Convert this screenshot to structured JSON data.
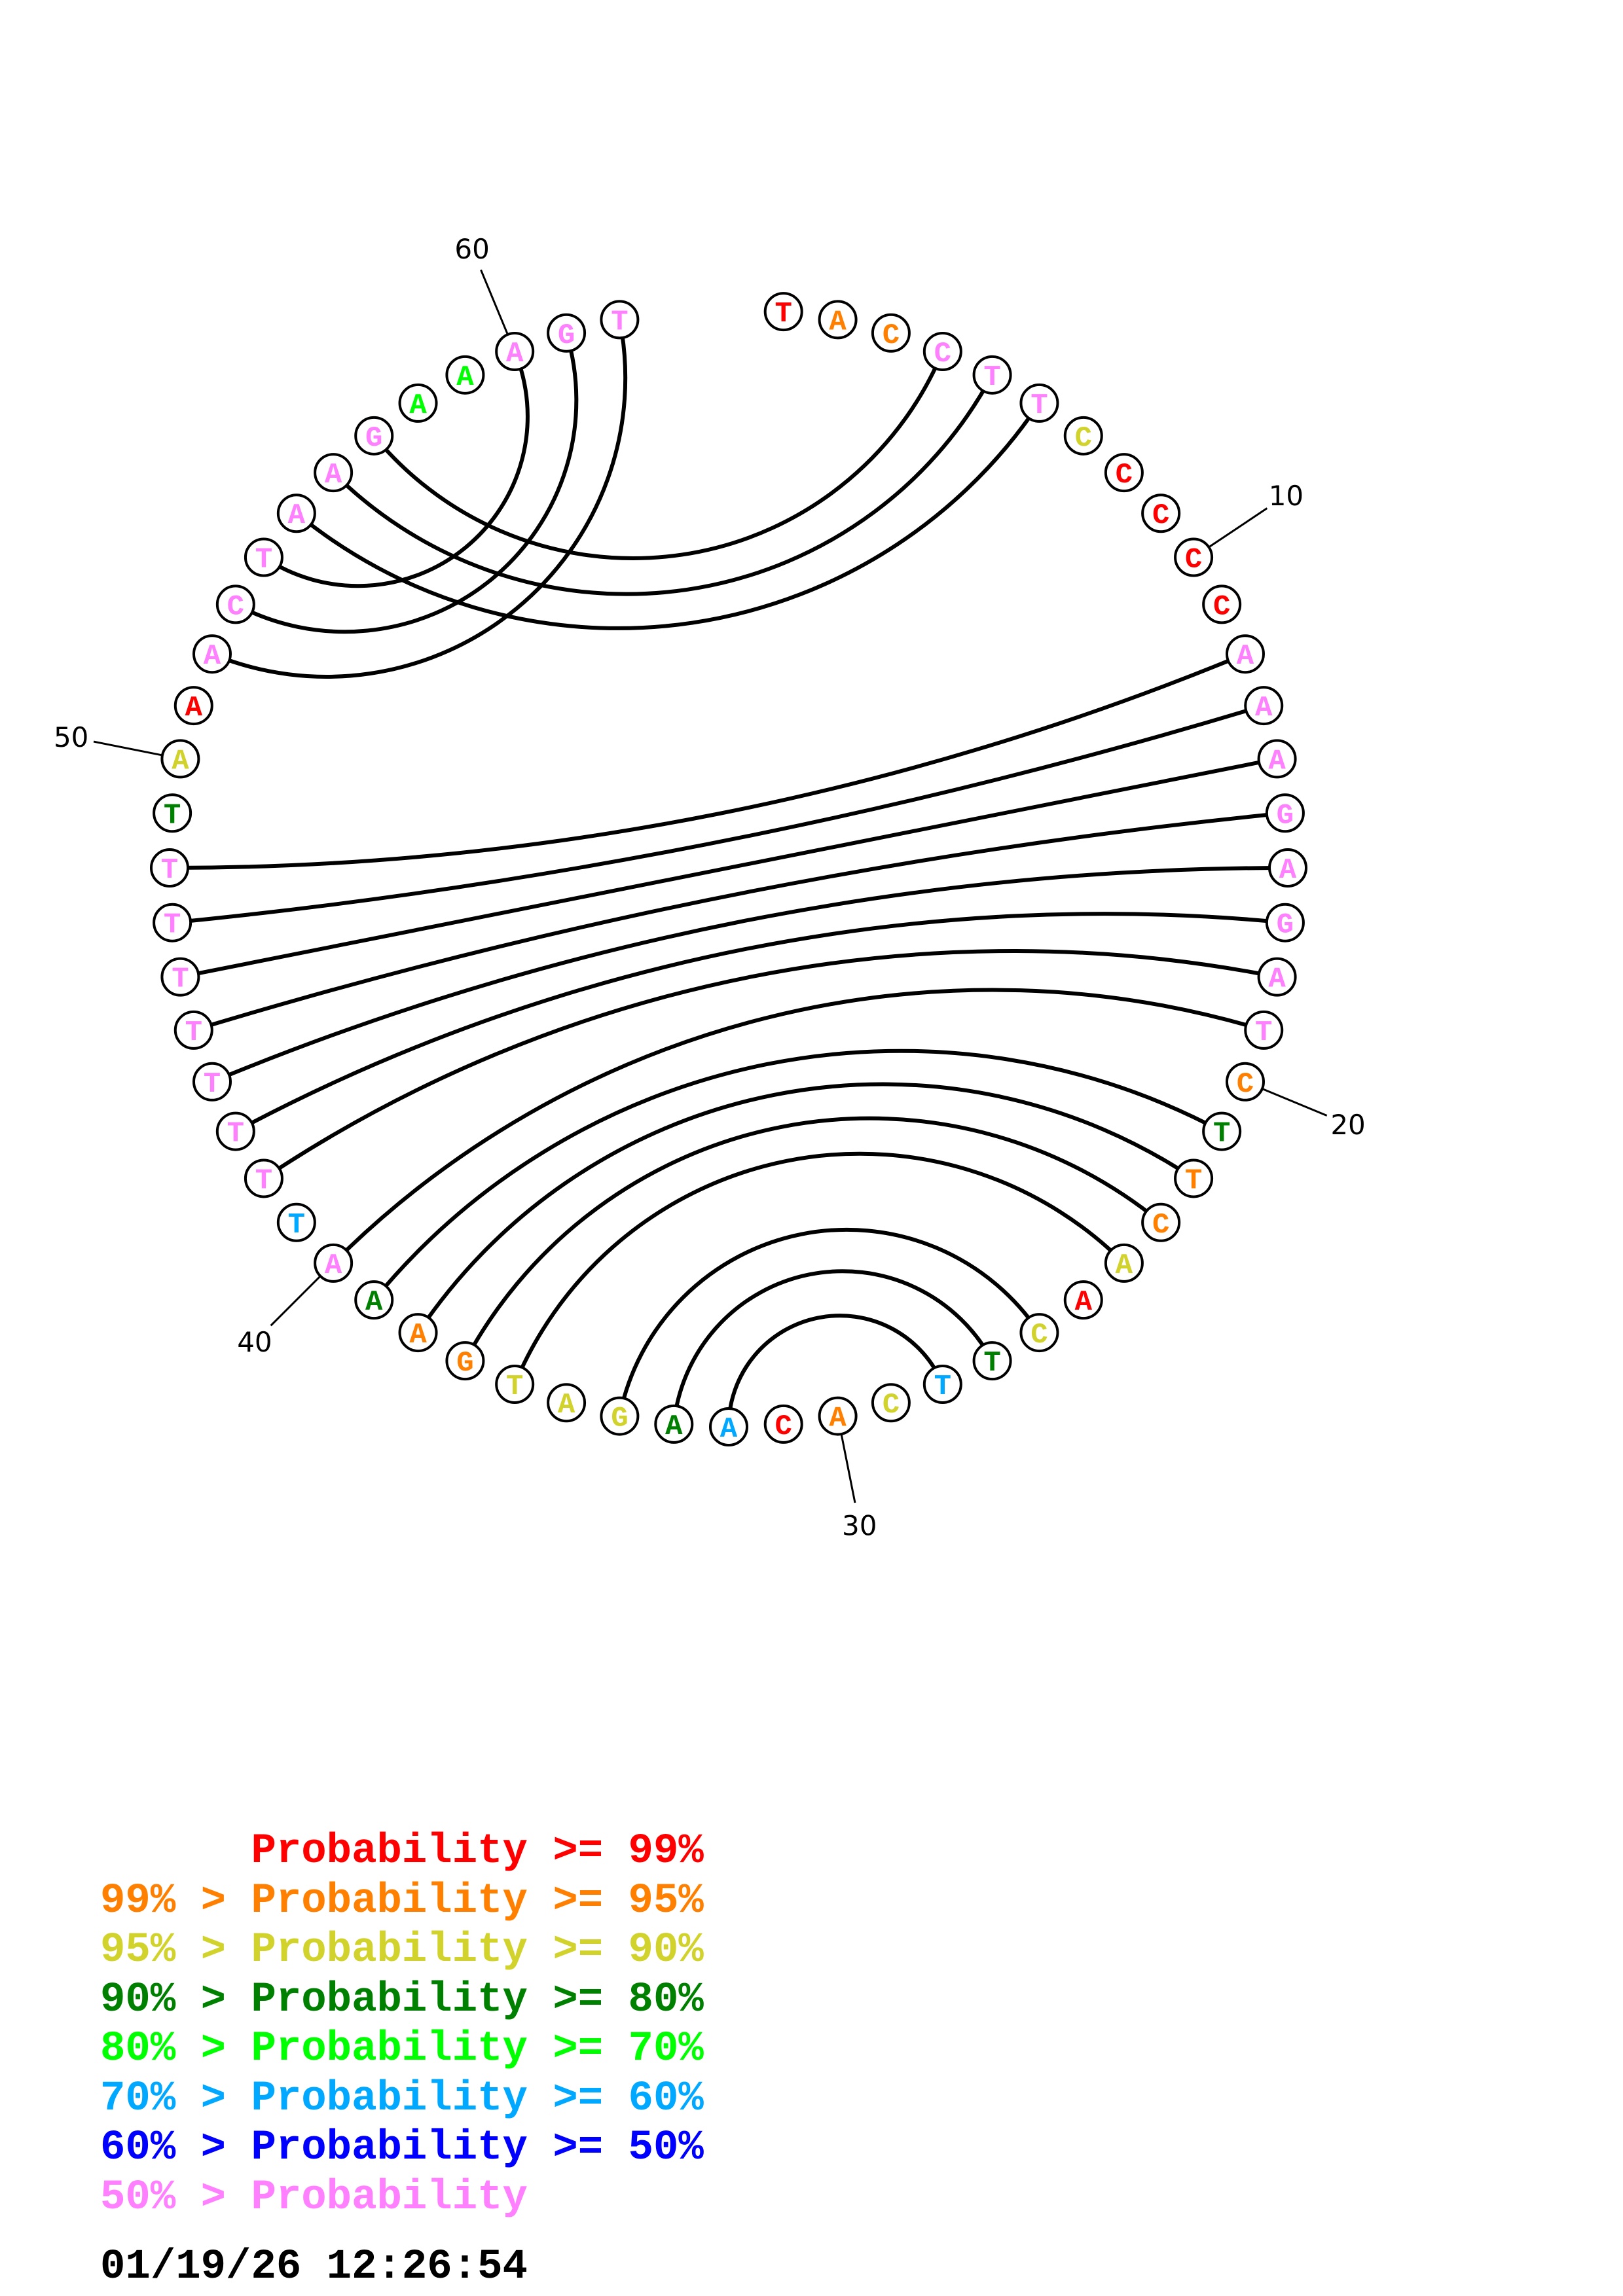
{
  "sequence": [
    "T",
    "A",
    "C",
    "C",
    "T",
    "T",
    "C",
    "C",
    "C",
    "C",
    "C",
    "A",
    "A",
    "A",
    "G",
    "A",
    "G",
    "A",
    "T",
    "C",
    "T",
    "T",
    "C",
    "A",
    "A",
    "C",
    "T",
    "T",
    "C",
    "A",
    "C",
    "A",
    "A",
    "G",
    "A",
    "T",
    "G",
    "A",
    "A",
    "A",
    "T",
    "T",
    "T",
    "T",
    "T",
    "T",
    "T",
    "T",
    "T",
    "A",
    "A",
    "A",
    "C",
    "T",
    "A",
    "A",
    "G",
    "A",
    "A",
    "A",
    "G",
    "T"
  ],
  "probability_class": [
    "r",
    "o",
    "o",
    "p",
    "p",
    "p",
    "y",
    "r",
    "r",
    "r",
    "r",
    "p",
    "p",
    "p",
    "p",
    "p",
    "p",
    "p",
    "p",
    "o",
    "dg",
    "o",
    "o",
    "y",
    "r",
    "y",
    "dg",
    "lb",
    "y",
    "o",
    "r",
    "lb",
    "dg",
    "y",
    "y",
    "y",
    "o",
    "o",
    "dg",
    "p",
    "lb",
    "p",
    "p",
    "p",
    "p",
    "p",
    "p",
    "p",
    "dg",
    "y",
    "r",
    "p",
    "p",
    "p",
    "p",
    "p",
    "p",
    "g",
    "g",
    "p",
    "p",
    "p"
  ],
  "colors": {
    "r": "#ff0000",
    "o": "#ff8000",
    "y": "#d2d22c",
    "dg": "#008000",
    "g": "#00ff00",
    "lb": "#00a8ff",
    "b": "#0000ff",
    "p": "#ff80ff"
  },
  "pairs": [
    [
      4,
      57
    ],
    [
      5,
      56
    ],
    [
      6,
      55
    ],
    [
      52,
      62
    ],
    [
      53,
      61
    ],
    [
      54,
      60
    ],
    [
      12,
      48
    ],
    [
      13,
      47
    ],
    [
      14,
      46
    ],
    [
      15,
      45
    ],
    [
      16,
      44
    ],
    [
      17,
      43
    ],
    [
      18,
      42
    ],
    [
      19,
      40
    ],
    [
      21,
      39
    ],
    [
      22,
      38
    ],
    [
      23,
      37
    ],
    [
      24,
      36
    ],
    [
      26,
      34
    ],
    [
      27,
      33
    ],
    [
      28,
      32
    ]
  ],
  "position_labels": [
    {
      "position": 10,
      "text": "10"
    },
    {
      "position": 20,
      "text": "20"
    },
    {
      "position": 30,
      "text": "30"
    },
    {
      "position": 40,
      "text": "40"
    },
    {
      "position": 50,
      "text": "50"
    },
    {
      "position": 60,
      "text": "60"
    }
  ],
  "legend": [
    {
      "text": "      Probability >= 99%",
      "class": "r"
    },
    {
      "text": "99% > Probability >= 95%",
      "class": "o"
    },
    {
      "text": "95% > Probability >= 90%",
      "class": "y"
    },
    {
      "text": "90% > Probability >= 80%",
      "class": "dg"
    },
    {
      "text": "80% > Probability >= 70%",
      "class": "g"
    },
    {
      "text": "70% > Probability >= 60%",
      "class": "lb"
    },
    {
      "text": "60% > Probability >= 50%",
      "class": "b"
    },
    {
      "text": "50% > Probability",
      "class": "p"
    }
  ],
  "timestamp": "01/19/26 12:26:54"
}
